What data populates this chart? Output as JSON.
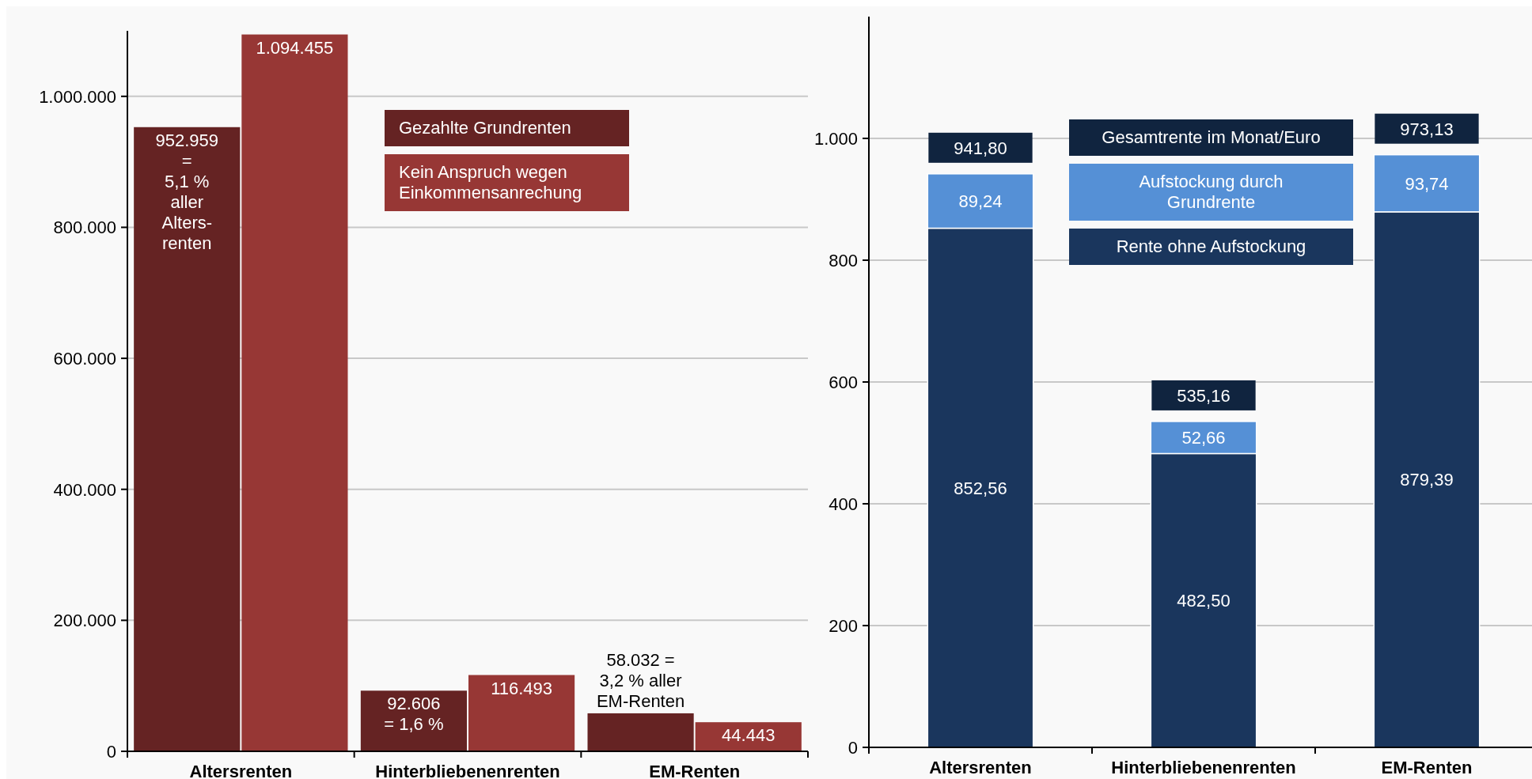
{
  "chart_data": [
    {
      "type": "bar",
      "categories": [
        "Altersrenten",
        "Hinterbliebenenrenten",
        "EM-Renten"
      ],
      "ylim": [
        0,
        1100000
      ],
      "yticks": [
        {
          "value": 0,
          "label": "0"
        },
        {
          "value": 200000,
          "label": "200.000"
        },
        {
          "value": 400000,
          "label": "400.000"
        },
        {
          "value": 600000,
          "label": "600.000"
        },
        {
          "value": 800000,
          "label": "800.000"
        },
        {
          "value": 1000000,
          "label": "1.000.000"
        }
      ],
      "grid": "y",
      "legend": "top",
      "series": [
        {
          "name": "Gezahlte Grundrenten",
          "color": "#652323",
          "values": [
            952959,
            92606,
            58032
          ],
          "value_labels": [
            "952.959\n=\n5,1 %\naller\nAlters-\nrenten",
            "92.606\n= 1,6 %",
            "58.032 =\n3,2 % aller\nEM-Renten"
          ]
        },
        {
          "name": "Kein Anspruch wegen Einkommensanrechung",
          "color": "#973735",
          "values": [
            1094455,
            116493,
            44443
          ],
          "value_labels": [
            "1.094.455",
            "116.493",
            "44.443"
          ]
        }
      ]
    },
    {
      "type": "bar",
      "stacked": true,
      "categories": [
        "Altersrenten",
        "Hinterbliebenenrenten",
        "EM-Renten"
      ],
      "ylim": [
        0,
        1200
      ],
      "yticks": [
        0,
        200,
        400,
        600,
        800,
        {
          "value": 1000,
          "label": "1.000"
        }
      ],
      "grid": "y",
      "legend": "top",
      "totals": [
        "941,80",
        "535,16",
        "973,13"
      ],
      "annotations": [
        "Gesamtrente im Monat/Euro"
      ],
      "series": [
        {
          "name": "Rente ohne Aufstockung",
          "color": "#1a365d",
          "values": [
            852.56,
            482.5,
            879.39
          ],
          "value_labels": [
            "852,56",
            "482,50",
            "879,39"
          ]
        },
        {
          "name": "Aufstockung durch Grundrente",
          "color": "#5590d6",
          "values": [
            89.24,
            52.66,
            93.74
          ],
          "value_labels": [
            "89,24",
            "52,66",
            "93,74"
          ]
        }
      ]
    }
  ]
}
